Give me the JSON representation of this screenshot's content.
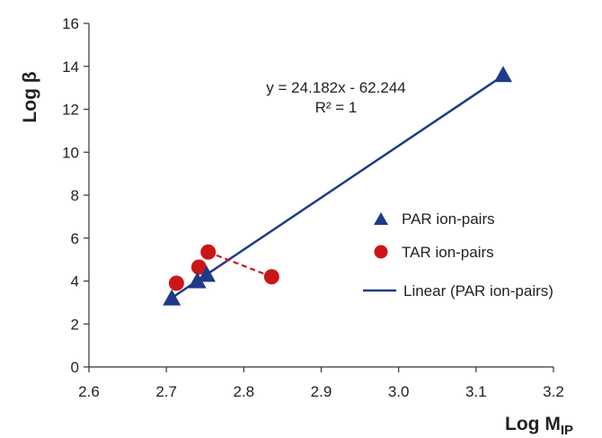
{
  "chart_data": {
    "type": "scatter",
    "xlabel": "Log M",
    "xlabel_sub": "IP",
    "ylabel": "Log β",
    "xlim": [
      2.6,
      3.2
    ],
    "ylim": [
      0,
      16
    ],
    "x_ticks": [
      "2.6",
      "2.7",
      "2.8",
      "2.9",
      "3.0",
      "3.1",
      "3.2"
    ],
    "y_ticks": [
      "0",
      "2",
      "4",
      "6",
      "8",
      "10",
      "12",
      "14",
      "16"
    ],
    "grid": false,
    "series": [
      {
        "name": "PAR ion-pairs",
        "marker": "triangle",
        "color": "#1f3a8a",
        "x": [
          2.707,
          2.74,
          2.752,
          3.135
        ],
        "y": [
          3.2,
          4.0,
          4.3,
          13.6
        ]
      },
      {
        "name": "TAR ion-pairs",
        "marker": "circle",
        "color": "#cc1616",
        "x": [
          2.713,
          2.742,
          2.754,
          2.836
        ],
        "y": [
          3.9,
          4.65,
          5.35,
          4.2
        ],
        "dashed_line_color": "#cc1616"
      }
    ],
    "trendline": {
      "name": "Linear (PAR ion-pairs)",
      "color": "#1f3a8a",
      "slope": 24.182,
      "intercept": -62.244,
      "x_range": [
        2.707,
        3.135
      ],
      "equation": "y = 24.182x - 62.244",
      "r2": "R² = 1"
    },
    "legend_position": "right"
  }
}
